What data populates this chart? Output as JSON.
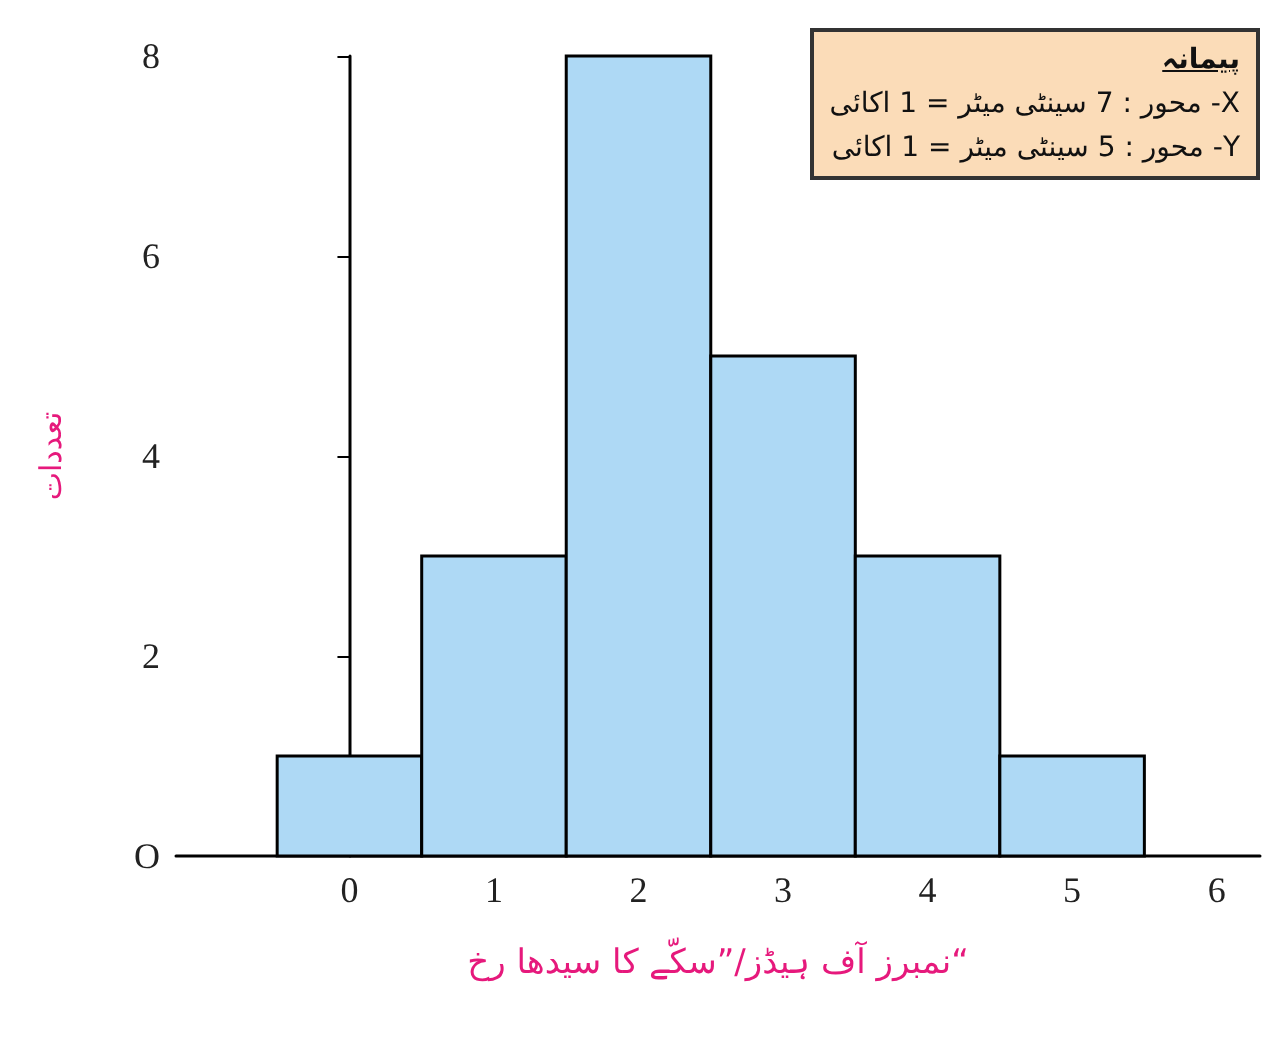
{
  "chart_data": {
    "type": "histogram",
    "bins": [
      -0.5,
      0.5,
      1.5,
      2.5,
      3.5,
      4.5,
      5.5
    ],
    "values": [
      1,
      3,
      8,
      5,
      3,
      1
    ],
    "color": "#aed9f5",
    "xlim": [
      -1.2,
      6.3
    ],
    "xticks": [
      0,
      1,
      2,
      3,
      4,
      5,
      6
    ],
    "ylim": [
      0,
      8
    ],
    "yticks": [
      {
        "value": 0,
        "label": "O"
      },
      2,
      4,
      6,
      8
    ],
    "xlabel": "نمبرز آف ہیڈز/”سکّے کا سیدھا رخ“",
    "ylabel": "تعددات",
    "annotations": [
      "پیمانہ",
      "X- محور : 7 سینٹی میٹر = 1 اکائی",
      "Y- محور : 5 سینٹی میٹر = 1 اکائی"
    ]
  }
}
